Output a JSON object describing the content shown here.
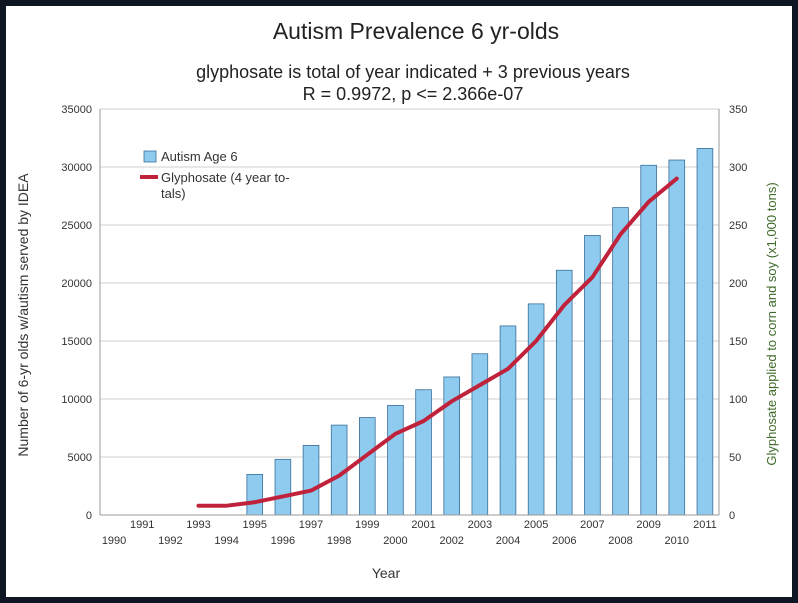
{
  "chart_data": {
    "type": "bar",
    "title": "Autism Prevalence 6 yr-olds",
    "subtitle_lines": [
      "glyphosate is total of year indicated + 3 previous years",
      "R = 0.9972, p <= 2.366e-07"
    ],
    "xlabel": "Year",
    "ylabel": "Number of 6-yr olds w/autism served by IDEA",
    "ylabel_right": "Glyphosate applied to corn and soy (x1,000 tons)",
    "ylim": [
      0,
      35000
    ],
    "ylim_right": [
      0,
      350
    ],
    "yticks": [
      0,
      5000,
      10000,
      15000,
      20000,
      25000,
      30000,
      35000
    ],
    "yticks_right": [
      0,
      50,
      100,
      150,
      200,
      250,
      300,
      350
    ],
    "categories": [
      "1990",
      "1991",
      "1992",
      "1993",
      "1994",
      "1995",
      "1996",
      "1997",
      "1998",
      "1999",
      "2000",
      "2001",
      "2002",
      "2003",
      "2004",
      "2005",
      "2006",
      "2007",
      "2008",
      "2009",
      "2010",
      "2011"
    ],
    "grid": true,
    "legend_position": "top-left",
    "series": [
      {
        "name": "Autism Age 6",
        "kind": "bar",
        "axis": "left",
        "color": "#8ecbee",
        "values": [
          null,
          null,
          null,
          null,
          null,
          3500,
          4800,
          6000,
          7750,
          8400,
          9450,
          10800,
          11900,
          13900,
          16300,
          18200,
          21100,
          24100,
          26500,
          30150,
          30600,
          31600
        ]
      },
      {
        "name": "Glyphosate (4 year to-\ntals)",
        "kind": "line",
        "axis": "right",
        "color": "#c0223b",
        "values": [
          null,
          null,
          null,
          8,
          8,
          11,
          16,
          21,
          34,
          52,
          70,
          81,
          98,
          112,
          126,
          150,
          181,
          205,
          242,
          270,
          290,
          null
        ]
      }
    ]
  }
}
